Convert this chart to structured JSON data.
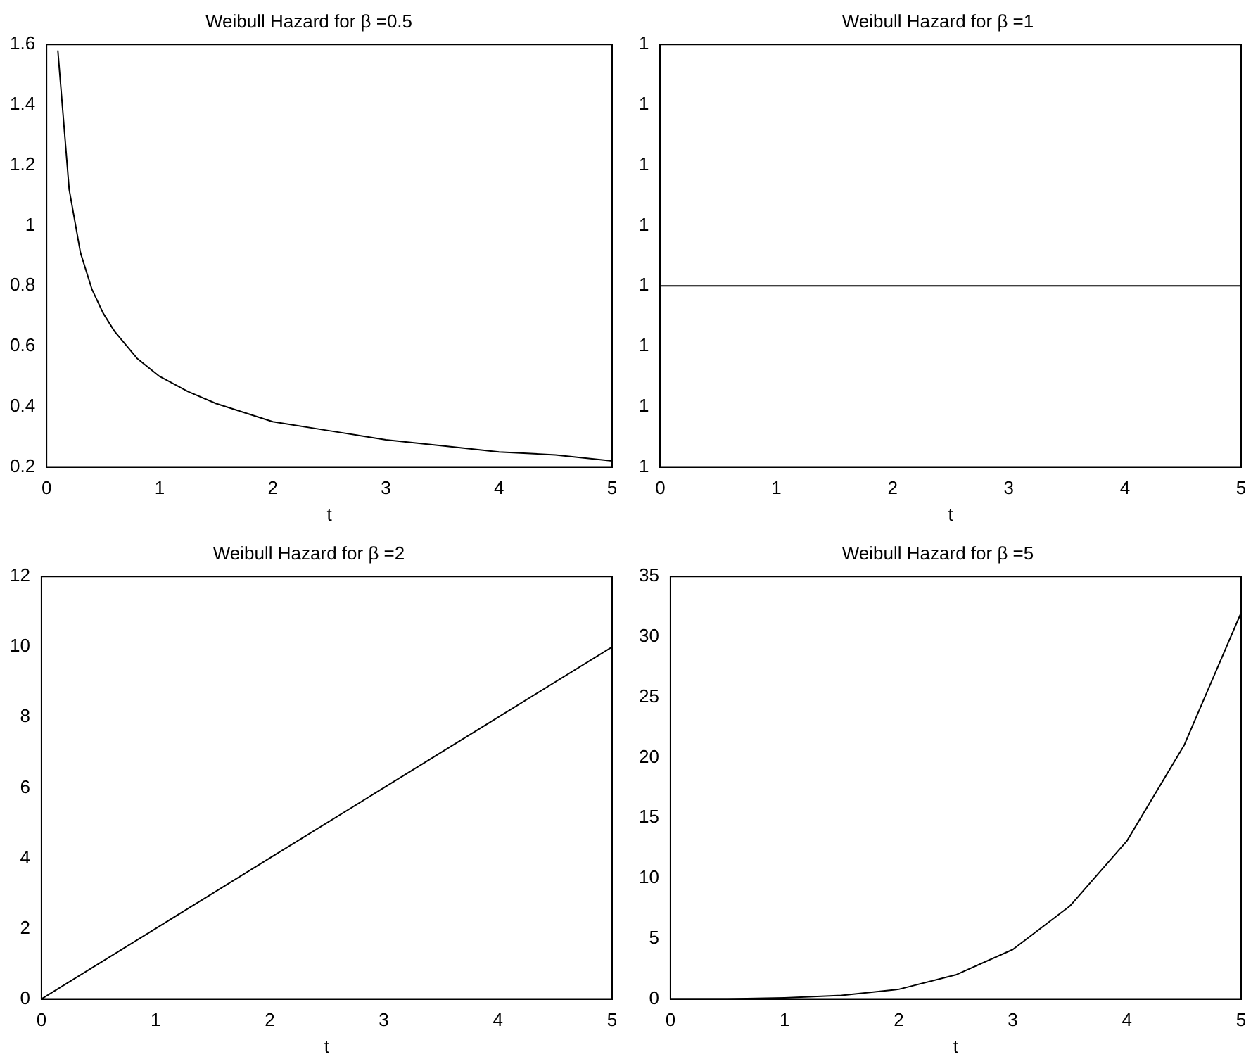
{
  "chart_data": [
    {
      "type": "line",
      "title": "Weibull Hazard for β =0.5",
      "xlabel": "t",
      "color": "#000000",
      "x": [
        0.1,
        0.2,
        0.3,
        0.4,
        0.5,
        0.6,
        0.8,
        1,
        1.25,
        1.5,
        2,
        2.5,
        3,
        3.5,
        4,
        4.5,
        5
      ],
      "values": [
        1.58,
        1.12,
        0.91,
        0.79,
        0.71,
        0.65,
        0.56,
        0.5,
        0.45,
        0.41,
        0.35,
        0.32,
        0.29,
        0.27,
        0.25,
        0.24,
        0.22
      ],
      "xlim": [
        0,
        5
      ],
      "xticks": [
        0,
        1,
        2,
        3,
        4,
        5
      ],
      "ylim": [
        0.2,
        1.6
      ],
      "yticks": [
        0.2,
        0.4,
        0.6,
        0.8,
        1,
        1.2,
        1.4,
        1.6
      ]
    },
    {
      "type": "line",
      "title": "Weibull Hazard for β =1",
      "xlabel": "t",
      "color": "#000000",
      "x": [
        0,
        5
      ],
      "values": [
        1,
        1
      ],
      "xlim": [
        0,
        5
      ],
      "xticks": [
        0,
        1,
        2,
        3,
        4,
        5
      ],
      "ylim": [
        0.9999997,
        1.0000004
      ],
      "yticks": [
        {
          "value": 0.9999997,
          "label": "1"
        },
        {
          "value": 0.9999998,
          "label": "1"
        },
        {
          "value": 0.9999999,
          "label": "1"
        },
        {
          "value": 1,
          "label": "1"
        },
        {
          "value": 1.0000001,
          "label": "1"
        },
        {
          "value": 1.0000002,
          "label": "1"
        },
        {
          "value": 1.0000003,
          "label": "1"
        },
        {
          "value": 1.0000004,
          "label": "1"
        }
      ]
    },
    {
      "type": "line",
      "title": "Weibull Hazard for β =2",
      "xlabel": "t",
      "color": "#000000",
      "x": [
        0,
        1,
        2,
        3,
        4,
        5
      ],
      "values": [
        0,
        2,
        4,
        6,
        8,
        10
      ],
      "xlim": [
        0,
        5
      ],
      "xticks": [
        0,
        1,
        2,
        3,
        4,
        5
      ],
      "ylim": [
        0,
        12
      ],
      "yticks": [
        0,
        2,
        4,
        6,
        8,
        10,
        12
      ]
    },
    {
      "type": "line",
      "title": "Weibull Hazard for β =5",
      "xlabel": "t",
      "color": "#000000",
      "x": [
        0,
        0.5,
        1,
        1.5,
        2,
        2.5,
        3,
        3.5,
        4,
        4.5,
        5
      ],
      "values": [
        0,
        0,
        0.1,
        0.3,
        0.8,
        2,
        4.1,
        7.7,
        13.1,
        21,
        32
      ],
      "xlim": [
        0,
        5
      ],
      "xticks": [
        0,
        1,
        2,
        3,
        4,
        5
      ],
      "ylim": [
        0,
        35
      ],
      "yticks": [
        0,
        5,
        10,
        15,
        20,
        25,
        30,
        35
      ]
    }
  ]
}
